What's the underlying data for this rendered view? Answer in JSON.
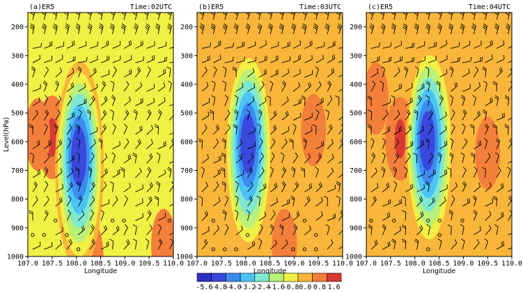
{
  "chart_data": {
    "type": "contour",
    "panels": [
      {
        "label": "(a)ER5",
        "time": "Time:02UTC",
        "min_center": {
          "lon": 108.05,
          "level": 660,
          "value": -5.2
        },
        "warm_cores": [
          {
            "lon": 107.5,
            "level": 585,
            "value": 1.0
          },
          {
            "lon": 107.2,
            "level": 575,
            "value": 0.3
          },
          {
            "lon": 108.3,
            "level": 1000,
            "value": 0.4
          },
          {
            "lon": 109.8,
            "level": 960,
            "value": 0.2
          }
        ]
      },
      {
        "label": "(b)ER5",
        "time": "Time:03UTC",
        "min_center": {
          "lon": 108.05,
          "level": 610,
          "value": -5.0
        },
        "warm_cores": [
          {
            "lon": 109.4,
            "level": 560,
            "value": 0.2
          },
          {
            "lon": 108.8,
            "level": 960,
            "value": 0.4
          }
        ]
      },
      {
        "label": "(c)ER5",
        "time": "Time:04UTC",
        "min_center": {
          "lon": 108.25,
          "level": 600,
          "value": -5.0
        },
        "warm_cores": [
          {
            "lon": 107.7,
            "level": 590,
            "value": 1.0
          },
          {
            "lon": 109.5,
            "level": 640,
            "value": 0.5
          },
          {
            "lon": 107.2,
            "level": 450,
            "value": 0.3
          }
        ]
      }
    ],
    "x_axis": {
      "label": "Longitude",
      "range": [
        107.0,
        110.0
      ],
      "ticks": [
        "107.0",
        "107.5",
        "108.0",
        "108.5",
        "109.0",
        "109.5",
        "110.0"
      ]
    },
    "y_axis": {
      "label": "Level(hPa)",
      "range": [
        1000,
        150
      ],
      "ticks": [
        "200",
        "300",
        "400",
        "500",
        "600",
        "700",
        "800",
        "900",
        "1000"
      ]
    },
    "colorbar": {
      "levels": [
        "-5.6",
        "-4.8",
        "-4.0",
        "-3.2",
        "-2.4",
        "-1.6",
        "-0.8",
        "0.0",
        "0.8",
        "1.6"
      ],
      "colors": [
        "#2e2fbf",
        "#3a49dd",
        "#3c8cf0",
        "#4cc3f5",
        "#7fe8d0",
        "#b9f07a",
        "#f0f045",
        "#f9b63b",
        "#f37f3a",
        "#d73a33"
      ]
    }
  }
}
